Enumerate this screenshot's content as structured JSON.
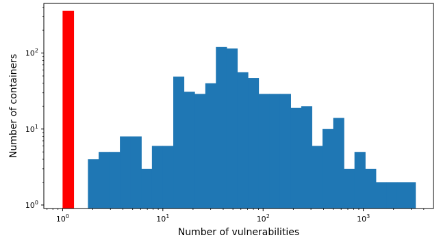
{
  "chart_data": {
    "type": "bar",
    "xscale": "log",
    "yscale": "log",
    "xlim": [
      0.65,
      5000
    ],
    "ylim": [
      0.9,
      450
    ],
    "xlabel": "Number of vulnerabilities",
    "ylabel": "Number of containers",
    "grid": false,
    "legend": "none",
    "colors": {
      "highlight": "#ff0000",
      "main": "#1f77b4"
    },
    "x_ticks": [
      {
        "value": 1,
        "base": "10",
        "exp": "0"
      },
      {
        "value": 10,
        "base": "10",
        "exp": "1"
      },
      {
        "value": 100,
        "base": "10",
        "exp": "2"
      },
      {
        "value": 1000,
        "base": "10",
        "exp": "3"
      }
    ],
    "y_ticks": [
      {
        "value": 1,
        "base": "10",
        "exp": "0"
      },
      {
        "value": 10,
        "base": "10",
        "exp": "1"
      },
      {
        "value": 100,
        "base": "10",
        "exp": "2"
      }
    ],
    "highlight_bar": {
      "x0": 1.0,
      "x1": 1.3,
      "value": 360
    },
    "bins": [
      {
        "x0": 1.79,
        "x1": 2.29,
        "value": 4
      },
      {
        "x0": 2.29,
        "x1": 2.92,
        "value": 5
      },
      {
        "x0": 2.92,
        "x1": 3.73,
        "value": 5
      },
      {
        "x0": 3.73,
        "x1": 4.77,
        "value": 8
      },
      {
        "x0": 4.77,
        "x1": 6.09,
        "value": 8
      },
      {
        "x0": 6.09,
        "x1": 7.78,
        "value": 3
      },
      {
        "x0": 7.78,
        "x1": 9.94,
        "value": 6
      },
      {
        "x0": 9.94,
        "x1": 12.7,
        "value": 6
      },
      {
        "x0": 12.7,
        "x1": 16.2,
        "value": 49
      },
      {
        "x0": 16.2,
        "x1": 20.7,
        "value": 31
      },
      {
        "x0": 20.7,
        "x1": 26.5,
        "value": 29
      },
      {
        "x0": 26.5,
        "x1": 33.8,
        "value": 40
      },
      {
        "x0": 33.8,
        "x1": 43.2,
        "value": 120
      },
      {
        "x0": 43.2,
        "x1": 55.2,
        "value": 115
      },
      {
        "x0": 55.2,
        "x1": 70.5,
        "value": 56
      },
      {
        "x0": 70.5,
        "x1": 90.0,
        "value": 47
      },
      {
        "x0": 90.0,
        "x1": 115,
        "value": 29
      },
      {
        "x0": 115,
        "x1": 147,
        "value": 29
      },
      {
        "x0": 147,
        "x1": 188,
        "value": 29
      },
      {
        "x0": 188,
        "x1": 240,
        "value": 19
      },
      {
        "x0": 240,
        "x1": 306,
        "value": 20
      },
      {
        "x0": 306,
        "x1": 391,
        "value": 6
      },
      {
        "x0": 391,
        "x1": 500,
        "value": 10
      },
      {
        "x0": 500,
        "x1": 638,
        "value": 14
      },
      {
        "x0": 638,
        "x1": 815,
        "value": 3
      },
      {
        "x0": 815,
        "x1": 1041,
        "value": 5
      },
      {
        "x0": 1041,
        "x1": 1330,
        "value": 3
      },
      {
        "x0": 1330,
        "x1": 1700,
        "value": 2
      },
      {
        "x0": 1700,
        "x1": 2170,
        "value": 2
      },
      {
        "x0": 2170,
        "x1": 3300,
        "value": 2
      }
    ]
  }
}
